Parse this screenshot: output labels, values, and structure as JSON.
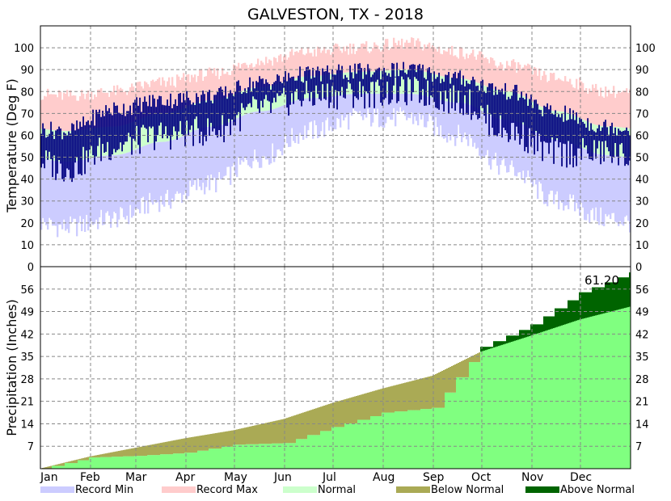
{
  "chart_data": {
    "type": "area",
    "title": "GALVESTON, TX - 2018",
    "months": [
      "Jan",
      "Feb",
      "Mar",
      "Apr",
      "May",
      "Jun",
      "Jul",
      "Aug",
      "Sep",
      "Oct",
      "Nov",
      "Dec"
    ],
    "temperature": {
      "ylabel": "Temperature (Deg F)",
      "ylim": [
        0,
        110
      ],
      "ticks": [
        0,
        10,
        20,
        30,
        40,
        50,
        60,
        70,
        80,
        90,
        100
      ],
      "series_names": [
        "Record Min",
        "Record Max",
        "Normal"
      ],
      "monthly": {
        "record_min": [
          18,
          22,
          30,
          38,
          50,
          62,
          68,
          68,
          60,
          45,
          30,
          22
        ],
        "record_max": [
          78,
          80,
          84,
          88,
          94,
          98,
          100,
          102,
          98,
          92,
          86,
          80
        ],
        "normal_low": [
          48,
          51,
          57,
          64,
          71,
          77,
          79,
          79,
          75,
          67,
          58,
          51
        ],
        "normal_high": [
          62,
          64,
          70,
          76,
          82,
          87,
          89,
          90,
          86,
          80,
          71,
          64
        ],
        "observed_low": [
          45,
          55,
          60,
          62,
          72,
          78,
          79,
          80,
          76,
          62,
          52,
          52
        ],
        "observed_high": [
          62,
          72,
          76,
          78,
          84,
          88,
          89,
          90,
          86,
          80,
          70,
          64
        ]
      }
    },
    "precipitation": {
      "ylabel": "Precipitation (Inches)",
      "ylim": [
        0,
        63
      ],
      "ticks": [
        7,
        14,
        21,
        28,
        35,
        42,
        49,
        56
      ],
      "series_names": [
        "Below Normal",
        "Above Normal"
      ],
      "cumulative_normal_month_end": [
        3.8,
        6.5,
        9.5,
        12.0,
        15.5,
        20.5,
        25.0,
        29.0,
        36.5,
        41.5,
        46.5,
        50.5
      ],
      "cumulative_actual_month_end": [
        3.5,
        4.0,
        5.0,
        7.5,
        8.0,
        13.0,
        17.5,
        19.0,
        38.0,
        45.0,
        55.0,
        61.2
      ],
      "total_label": "61.20"
    },
    "legend": [
      {
        "label": "Record Min",
        "color": "#ccccff"
      },
      {
        "label": "Record Max",
        "color": "#ffcccc"
      },
      {
        "label": "Normal",
        "color": "#ccffcc"
      },
      {
        "label": "Below Normal",
        "color": "#aaaa55"
      },
      {
        "label": "Above Normal",
        "color": "#006400"
      }
    ],
    "grid": true
  },
  "colors": {
    "record_min": "#ccccff",
    "record_max": "#ffcccc",
    "normal": "#ccffcc",
    "observed": "#000080",
    "precip_actual": "#80ff80",
    "below_normal": "#aaaa55",
    "above_normal": "#006400"
  }
}
